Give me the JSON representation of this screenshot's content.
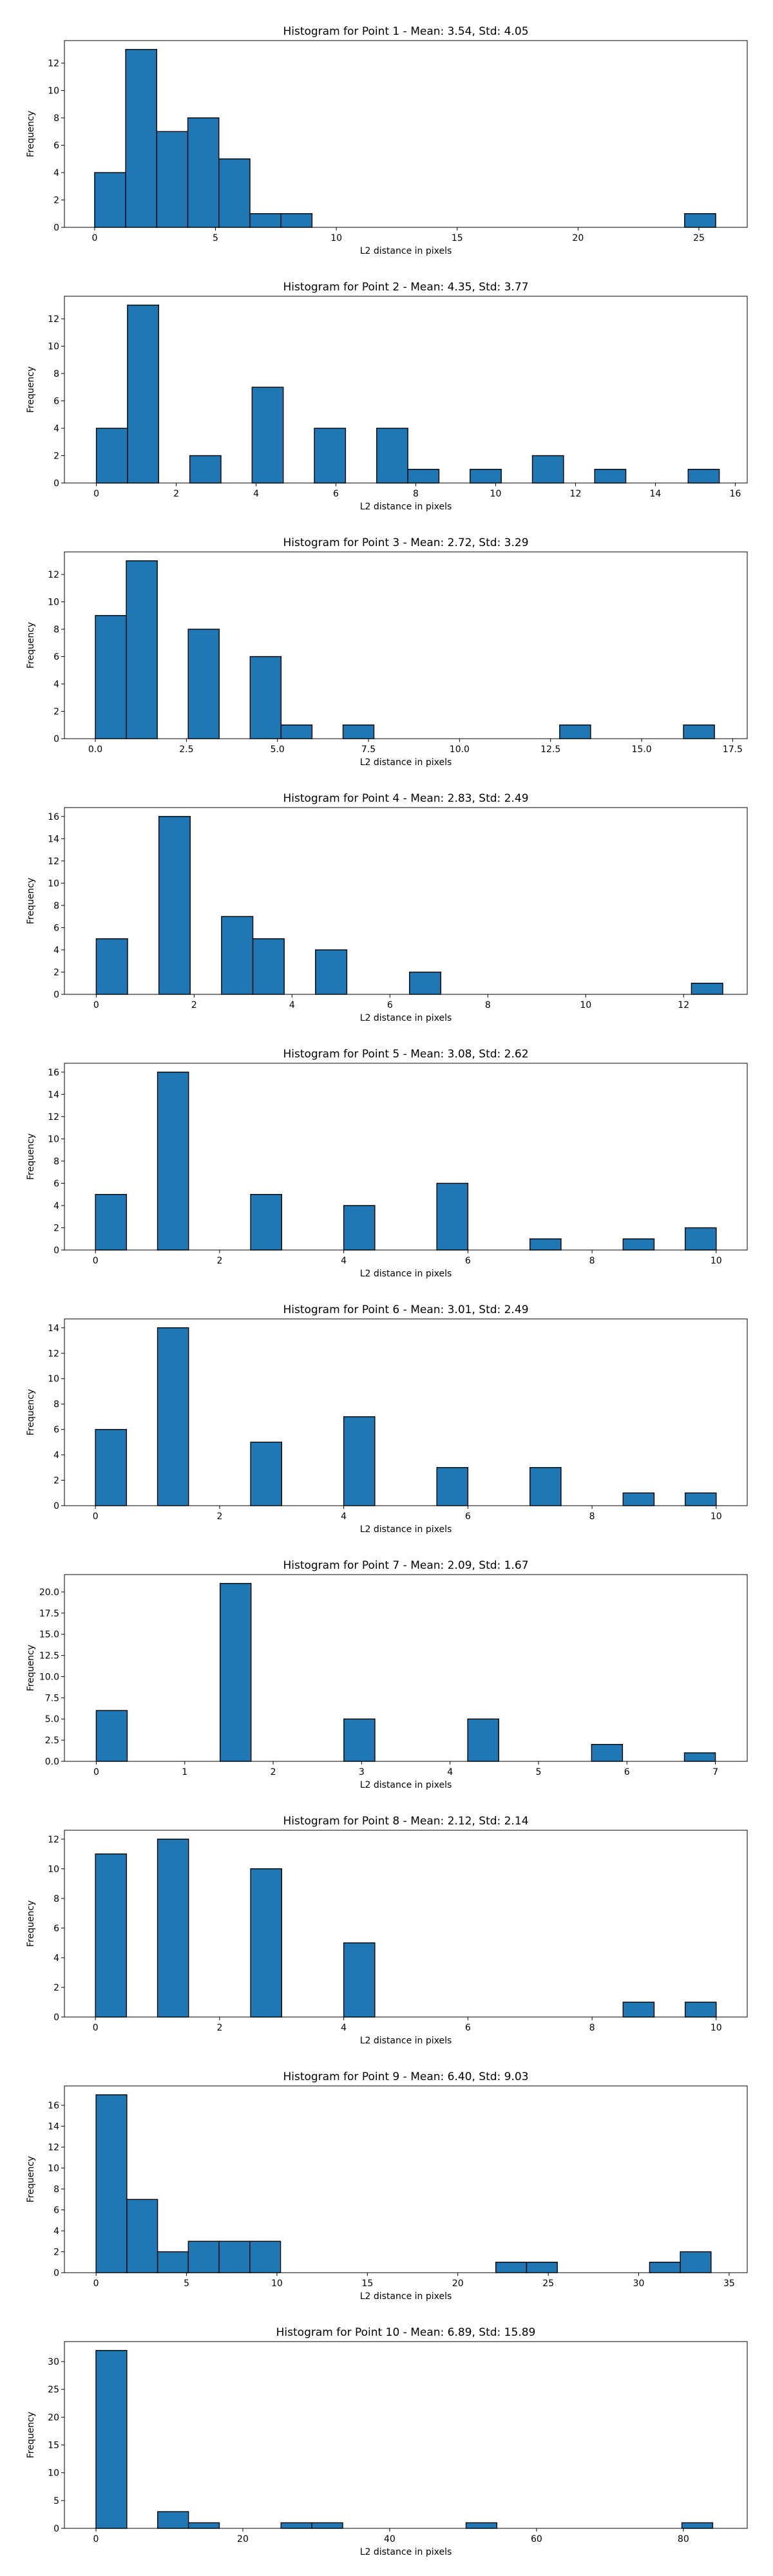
{
  "figure": {
    "background": "#ffffff",
    "bar_color": "#1f77b4",
    "edge_color": "#000000"
  },
  "chart_data": [
    {
      "type": "bar",
      "title": "Histogram for Point 1 - Mean: 3.54, Std: 4.05",
      "xlabel": "L2 distance in pixels",
      "ylabel": "Frequency",
      "xlim": [
        -1.25,
        27.0
      ],
      "ylim": [
        0,
        13.65
      ],
      "bin_width": 1.285,
      "x": [
        0.0,
        1.285,
        2.57,
        3.855,
        5.14,
        6.425,
        7.71,
        24.41
      ],
      "values": [
        4,
        13,
        7,
        8,
        5,
        1,
        1,
        1
      ],
      "xticks": [
        0,
        5,
        10,
        15,
        20,
        25
      ],
      "xtick_labels": [
        "0",
        "5",
        "10",
        "15",
        "20",
        "25"
      ],
      "yticks": [
        0,
        2,
        4,
        6,
        8,
        10,
        12
      ],
      "ytick_labels": [
        "0",
        "2",
        "4",
        "6",
        "8",
        "10",
        "12"
      ],
      "grid": false,
      "legend": null
    },
    {
      "type": "bar",
      "title": "Histogram for Point 2 - Mean: 4.35, Std: 3.77",
      "xlabel": "L2 distance in pixels",
      "ylabel": "Frequency",
      "xlim": [
        -0.8,
        16.3
      ],
      "ylim": [
        0,
        13.65
      ],
      "bin_width": 0.78,
      "x": [
        0.0,
        0.78,
        2.34,
        3.9,
        5.46,
        7.02,
        7.8,
        9.36,
        10.92,
        12.48,
        14.82
      ],
      "values": [
        4,
        13,
        2,
        7,
        4,
        4,
        1,
        1,
        2,
        1,
        1
      ],
      "xticks": [
        0,
        2,
        4,
        6,
        8,
        10,
        12,
        14,
        16
      ],
      "xtick_labels": [
        "0",
        "2",
        "4",
        "6",
        "8",
        "10",
        "12",
        "14",
        "16"
      ],
      "yticks": [
        0,
        2,
        4,
        6,
        8,
        10,
        12
      ],
      "ytick_labels": [
        "0",
        "2",
        "4",
        "6",
        "8",
        "10",
        "12"
      ],
      "grid": false,
      "legend": null
    },
    {
      "type": "bar",
      "title": "Histogram for Point 3 - Mean: 2.72, Std: 3.29",
      "xlabel": "L2 distance in pixels",
      "ylabel": "Frequency",
      "xlim": [
        -0.85,
        17.9
      ],
      "ylim": [
        0,
        13.65
      ],
      "bin_width": 0.85,
      "x": [
        0.0,
        0.85,
        2.55,
        4.25,
        5.1,
        6.8,
        12.75,
        16.15
      ],
      "values": [
        9,
        13,
        8,
        6,
        1,
        1,
        1,
        1
      ],
      "xticks": [
        0.0,
        2.5,
        5.0,
        7.5,
        10.0,
        12.5,
        15.0,
        17.5
      ],
      "xtick_labels": [
        "0.0",
        "2.5",
        "5.0",
        "7.5",
        "10.0",
        "12.5",
        "15.0",
        "17.5"
      ],
      "yticks": [
        0,
        2,
        4,
        6,
        8,
        10,
        12
      ],
      "ytick_labels": [
        "0",
        "2",
        "4",
        "6",
        "8",
        "10",
        "12"
      ],
      "grid": false,
      "legend": null
    },
    {
      "type": "bar",
      "title": "Histogram for Point 4 - Mean: 2.83, Std: 2.49",
      "xlabel": "L2 distance in pixels",
      "ylabel": "Frequency",
      "xlim": [
        -0.65,
        13.3
      ],
      "ylim": [
        0,
        16.8
      ],
      "bin_width": 0.64,
      "x": [
        0.0,
        1.28,
        1.92,
        2.56,
        3.2,
        4.48,
        5.12,
        6.4,
        7.04,
        8.32,
        12.16
      ],
      "values": [
        5,
        16,
        0,
        7,
        5,
        4,
        0,
        2,
        0,
        0,
        1
      ],
      "xticks": [
        0,
        2,
        4,
        6,
        8,
        10,
        12
      ],
      "xtick_labels": [
        "0",
        "2",
        "4",
        "6",
        "8",
        "10",
        "12"
      ],
      "yticks": [
        0,
        2,
        4,
        6,
        8,
        10,
        12,
        14,
        16
      ],
      "ytick_labels": [
        "0",
        "2",
        "4",
        "6",
        "8",
        "10",
        "12",
        "14",
        "16"
      ],
      "grid": false,
      "legend": null
    },
    {
      "type": "bar",
      "title": "Histogram for Point 5 - Mean: 3.08, Std: 2.62",
      "xlabel": "L2 distance in pixels",
      "ylabel": "Frequency",
      "xlim": [
        -0.5,
        10.5
      ],
      "ylim": [
        0,
        16.8
      ],
      "bin_width": 0.5,
      "x": [
        0.0,
        1.0,
        2.5,
        4.0,
        5.5,
        7.0,
        8.5,
        9.5
      ],
      "values": [
        5,
        16,
        5,
        4,
        6,
        1,
        1,
        2
      ],
      "xticks": [
        0,
        2,
        4,
        6,
        8,
        10
      ],
      "xtick_labels": [
        "0",
        "2",
        "4",
        "6",
        "8",
        "10"
      ],
      "yticks": [
        0,
        2,
        4,
        6,
        8,
        10,
        12,
        14,
        16
      ],
      "ytick_labels": [
        "0",
        "2",
        "4",
        "6",
        "8",
        "10",
        "12",
        "14",
        "16"
      ],
      "grid": false,
      "legend": null
    },
    {
      "type": "bar",
      "title": "Histogram for Point 6 - Mean: 3.01, Std: 2.49",
      "xlabel": "L2 distance in pixels",
      "ylabel": "Frequency",
      "xlim": [
        -0.5,
        10.5
      ],
      "ylim": [
        0,
        14.7
      ],
      "bin_width": 0.5,
      "x": [
        0.0,
        1.0,
        2.5,
        4.0,
        5.5,
        7.0,
        8.5,
        9.5
      ],
      "values": [
        6,
        14,
        5,
        7,
        3,
        3,
        1,
        1
      ],
      "xticks": [
        0,
        2,
        4,
        6,
        8,
        10
      ],
      "xtick_labels": [
        "0",
        "2",
        "4",
        "6",
        "8",
        "10"
      ],
      "yticks": [
        0,
        2,
        4,
        6,
        8,
        10,
        12,
        14
      ],
      "ytick_labels": [
        "0",
        "2",
        "4",
        "6",
        "8",
        "10",
        "12",
        "14"
      ],
      "grid": false,
      "legend": null
    },
    {
      "type": "bar",
      "title": "Histogram for Point 7 - Mean: 2.09, Std: 1.67",
      "xlabel": "L2 distance in pixels",
      "ylabel": "Frequency",
      "xlim": [
        -0.36,
        7.36
      ],
      "ylim": [
        0,
        22.05
      ],
      "bin_width": 0.35,
      "x": [
        0.0,
        1.4,
        2.8,
        4.2,
        5.6,
        6.65
      ],
      "values": [
        6,
        21,
        5,
        5,
        2,
        1
      ],
      "xticks": [
        0,
        1,
        2,
        3,
        4,
        5,
        6,
        7
      ],
      "xtick_labels": [
        "0",
        "1",
        "2",
        "3",
        "4",
        "5",
        "6",
        "7"
      ],
      "yticks": [
        0,
        2.5,
        5,
        7.5,
        10,
        12.5,
        15,
        17.5,
        20
      ],
      "ytick_labels": [
        "0.0",
        "2.5",
        "5.0",
        "7.5",
        "10.0",
        "12.5",
        "15.0",
        "17.5",
        "20.0"
      ],
      "grid": false,
      "legend": null
    },
    {
      "type": "bar",
      "title": "Histogram for Point 8 - Mean: 2.12, Std: 2.14",
      "xlabel": "L2 distance in pixels",
      "ylabel": "Frequency",
      "xlim": [
        -0.5,
        10.5
      ],
      "ylim": [
        0,
        12.6
      ],
      "bin_width": 0.5,
      "x": [
        0.0,
        1.0,
        2.5,
        4.0,
        8.5,
        9.5
      ],
      "values": [
        11,
        12,
        10,
        5,
        1,
        1
      ],
      "xticks": [
        0,
        2,
        4,
        6,
        8,
        10
      ],
      "xtick_labels": [
        "0",
        "2",
        "4",
        "6",
        "8",
        "10"
      ],
      "yticks": [
        0,
        2,
        4,
        6,
        8,
        10,
        12
      ],
      "ytick_labels": [
        "0",
        "2",
        "4",
        "6",
        "8",
        "10",
        "12"
      ],
      "grid": false,
      "legend": null
    },
    {
      "type": "bar",
      "title": "Histogram for Point 9 - Mean: 6.40, Std: 9.03",
      "xlabel": "L2 distance in pixels",
      "ylabel": "Frequency",
      "xlim": [
        -1.75,
        36.0
      ],
      "ylim": [
        0,
        17.85
      ],
      "bin_width": 1.7,
      "x": [
        0.0,
        1.7,
        3.4,
        5.1,
        6.8,
        8.5,
        22.1,
        23.8,
        30.6,
        32.3
      ],
      "values": [
        17,
        7,
        2,
        3,
        3,
        3,
        1,
        1,
        1,
        2
      ],
      "xticks": [
        0,
        5,
        10,
        15,
        20,
        25,
        30,
        35
      ],
      "xtick_labels": [
        "0",
        "5",
        "10",
        "15",
        "20",
        "25",
        "30",
        "35"
      ],
      "yticks": [
        0,
        2,
        4,
        6,
        8,
        10,
        12,
        14,
        16
      ],
      "ytick_labels": [
        "0",
        "2",
        "4",
        "6",
        "8",
        "10",
        "12",
        "14",
        "16"
      ],
      "grid": false,
      "legend": null
    },
    {
      "type": "bar",
      "title": "Histogram for Point 10 - Mean: 6.89, Std: 15.89",
      "xlabel": "L2 distance in pixels",
      "ylabel": "Frequency",
      "xlim": [
        -4.3,
        88.7
      ],
      "ylim": [
        0,
        33.6
      ],
      "bin_width": 4.2,
      "x": [
        0.0,
        8.4,
        12.6,
        25.2,
        29.4,
        50.4,
        79.8
      ],
      "values": [
        32,
        3,
        1,
        1,
        1,
        1,
        1
      ],
      "xticks": [
        0,
        20,
        40,
        60,
        80
      ],
      "xtick_labels": [
        "0",
        "20",
        "40",
        "60",
        "80"
      ],
      "yticks": [
        0,
        5,
        10,
        15,
        20,
        25,
        30
      ],
      "ytick_labels": [
        "0",
        "5",
        "10",
        "15",
        "20",
        "25",
        "30"
      ],
      "grid": false,
      "legend": null
    }
  ]
}
